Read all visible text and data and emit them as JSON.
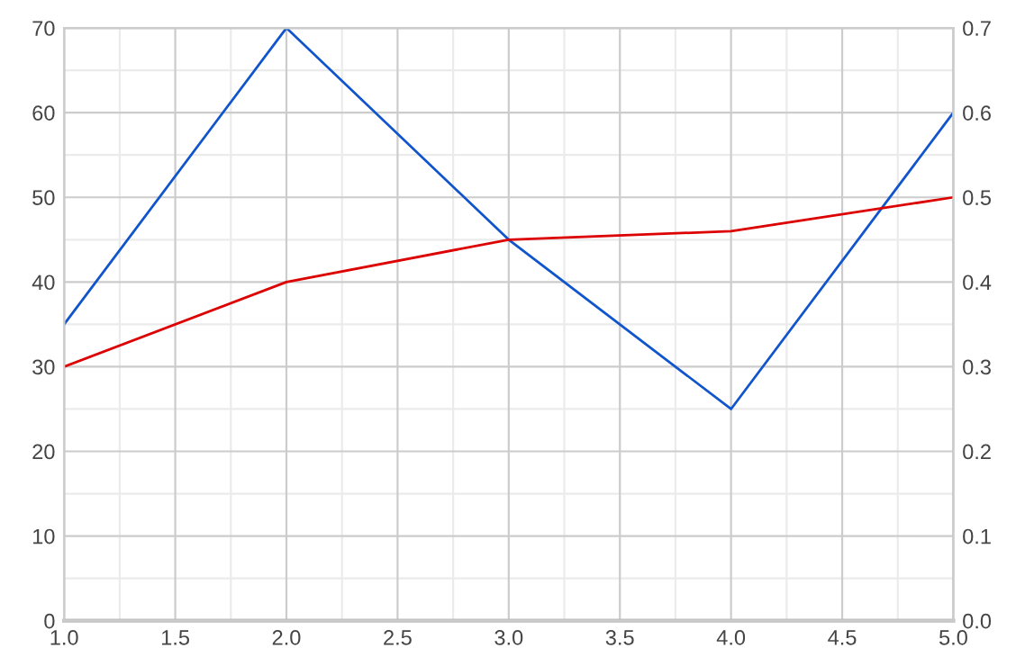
{
  "chart_data": {
    "type": "line",
    "x": [
      1.0,
      2.0,
      3.0,
      4.0,
      5.0
    ],
    "series": [
      {
        "color": "#1155cc",
        "values": [
          35,
          70,
          45,
          25,
          60
        ]
      },
      {
        "color": "#dd0000",
        "values": [
          0.3,
          0.4,
          0.45,
          0.46,
          0.5
        ],
        "axis": "y2"
      }
    ],
    "xlim": [
      1.0,
      5.0
    ],
    "xticks": [
      {
        "value": 1,
        "label": "1.0"
      },
      1.5,
      {
        "value": 2,
        "label": "2.0"
      },
      2.5,
      {
        "value": 3,
        "label": "3.0"
      },
      3.5,
      {
        "value": 4,
        "label": "4.0"
      },
      4.5,
      {
        "value": 5,
        "label": "5.0"
      }
    ],
    "ylim": [
      0,
      70
    ],
    "yticks": [
      0,
      10,
      20,
      30,
      40,
      50,
      60,
      70
    ],
    "y2lim": [
      0.0,
      0.7
    ],
    "y2ticks": [
      {
        "value": 0,
        "label": "0.0"
      },
      0.1,
      0.2,
      0.3,
      0.4,
      0.5,
      0.6,
      0.7
    ],
    "grid": true,
    "marker": "none",
    "line_style": "solid"
  }
}
